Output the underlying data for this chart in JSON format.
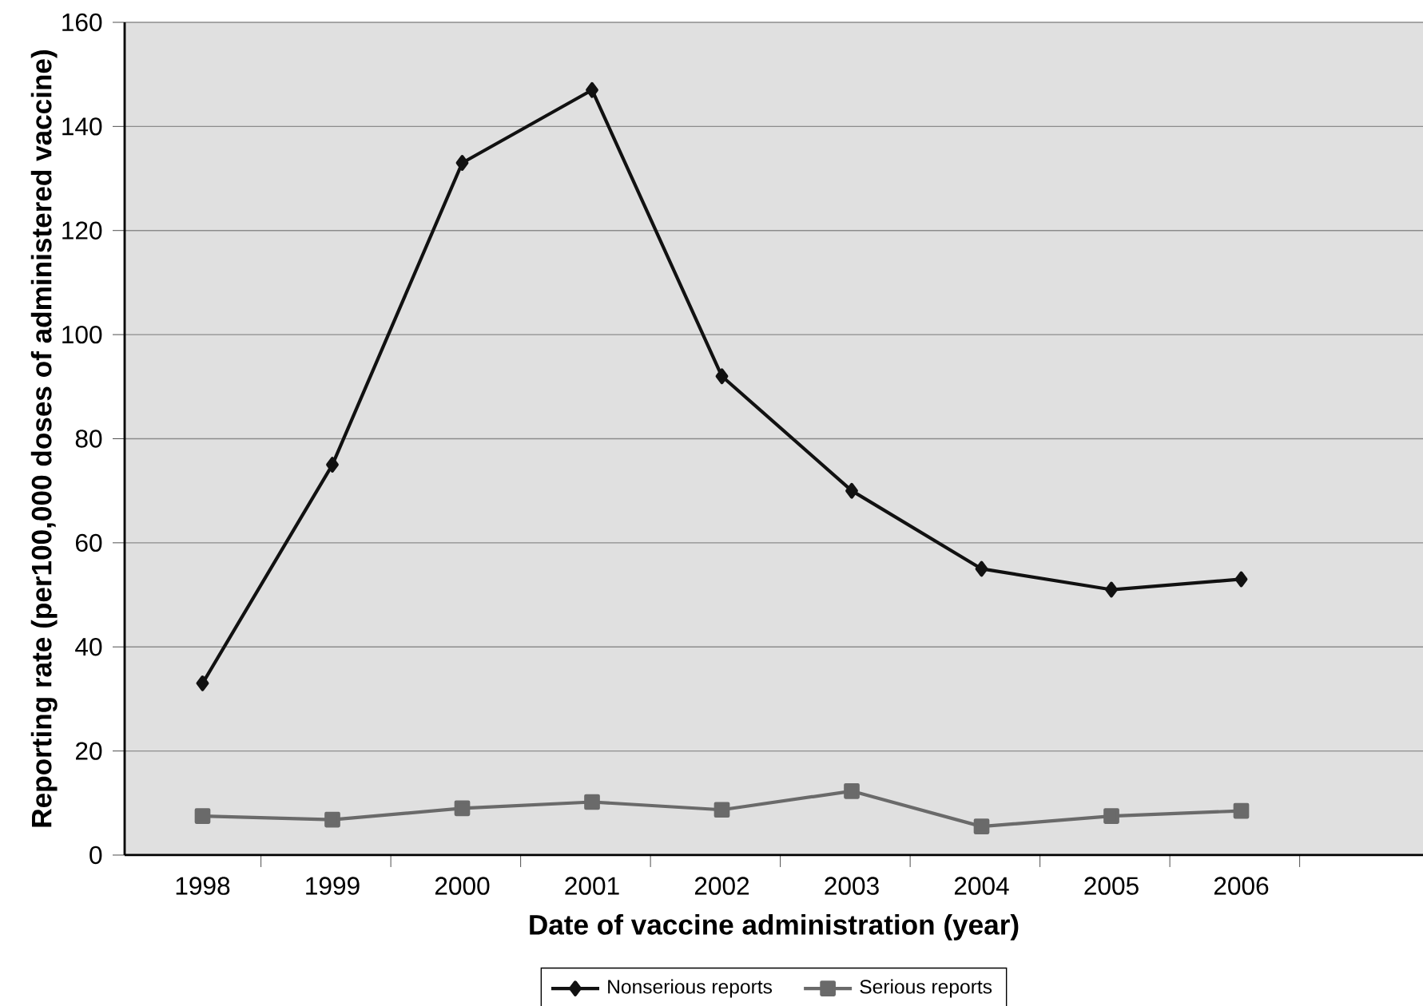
{
  "chart_data": {
    "type": "line",
    "xlabel": "Date of vaccine administration (year)",
    "ylabel": "Reporting rate  (per100,000  doses of administered vaccine)",
    "categories": [
      "1998",
      "1999",
      "2000",
      "2001",
      "2002",
      "2003",
      "2004",
      "2005",
      "2006",
      null
    ],
    "series": [
      {
        "name": "Nonserious reports",
        "color": "#111111",
        "marker": "diamond",
        "values": [
          33,
          75,
          133,
          147,
          92,
          70,
          55,
          51,
          53,
          null
        ]
      },
      {
        "name": "Serious reports",
        "color": "#6a6a6a",
        "marker": "square",
        "values": [
          7.5,
          6.8,
          9,
          10.2,
          8.7,
          12.3,
          5.5,
          7.5,
          8.5,
          null
        ]
      }
    ],
    "ylim": [
      0,
      160
    ],
    "yticks": [
      0,
      20,
      40,
      60,
      80,
      100,
      120,
      140,
      160
    ],
    "grid": "y",
    "legend": "bottom"
  }
}
